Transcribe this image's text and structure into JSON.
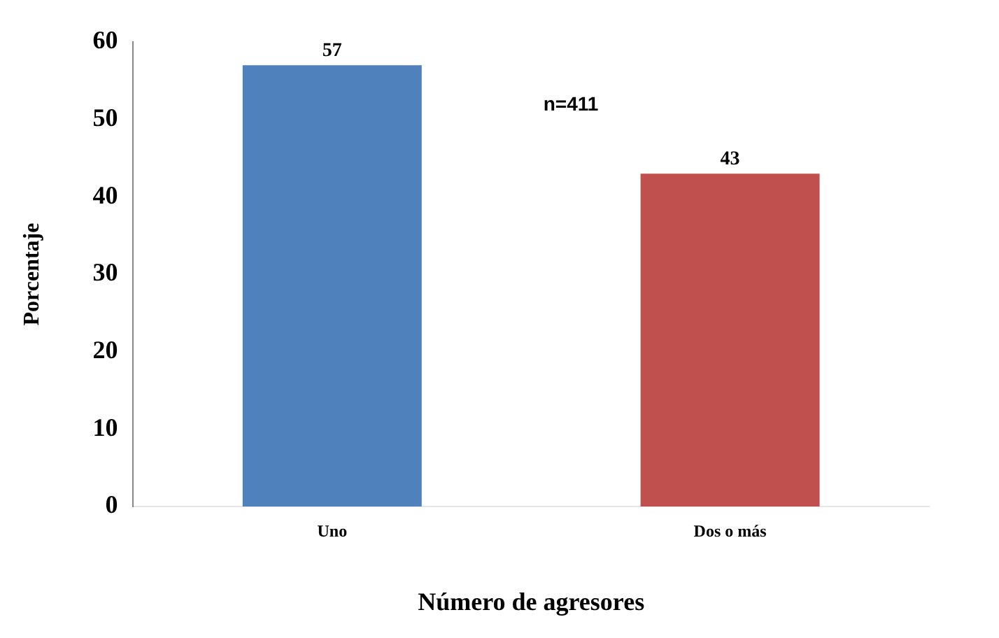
{
  "chart_data": {
    "type": "bar",
    "xlabel": "Número de agresores",
    "ylabel": "Porcentaje",
    "categories": [
      "Uno",
      "Dos o más"
    ],
    "values": [
      57,
      43
    ],
    "colors": [
      "#4f81bd",
      "#c0504d"
    ],
    "ylim": [
      0,
      60
    ],
    "yticks": [
      0,
      10,
      20,
      30,
      40,
      50,
      60
    ],
    "data_labels": true,
    "annotations": [
      "n=411"
    ],
    "grid": false,
    "legend": false
  }
}
